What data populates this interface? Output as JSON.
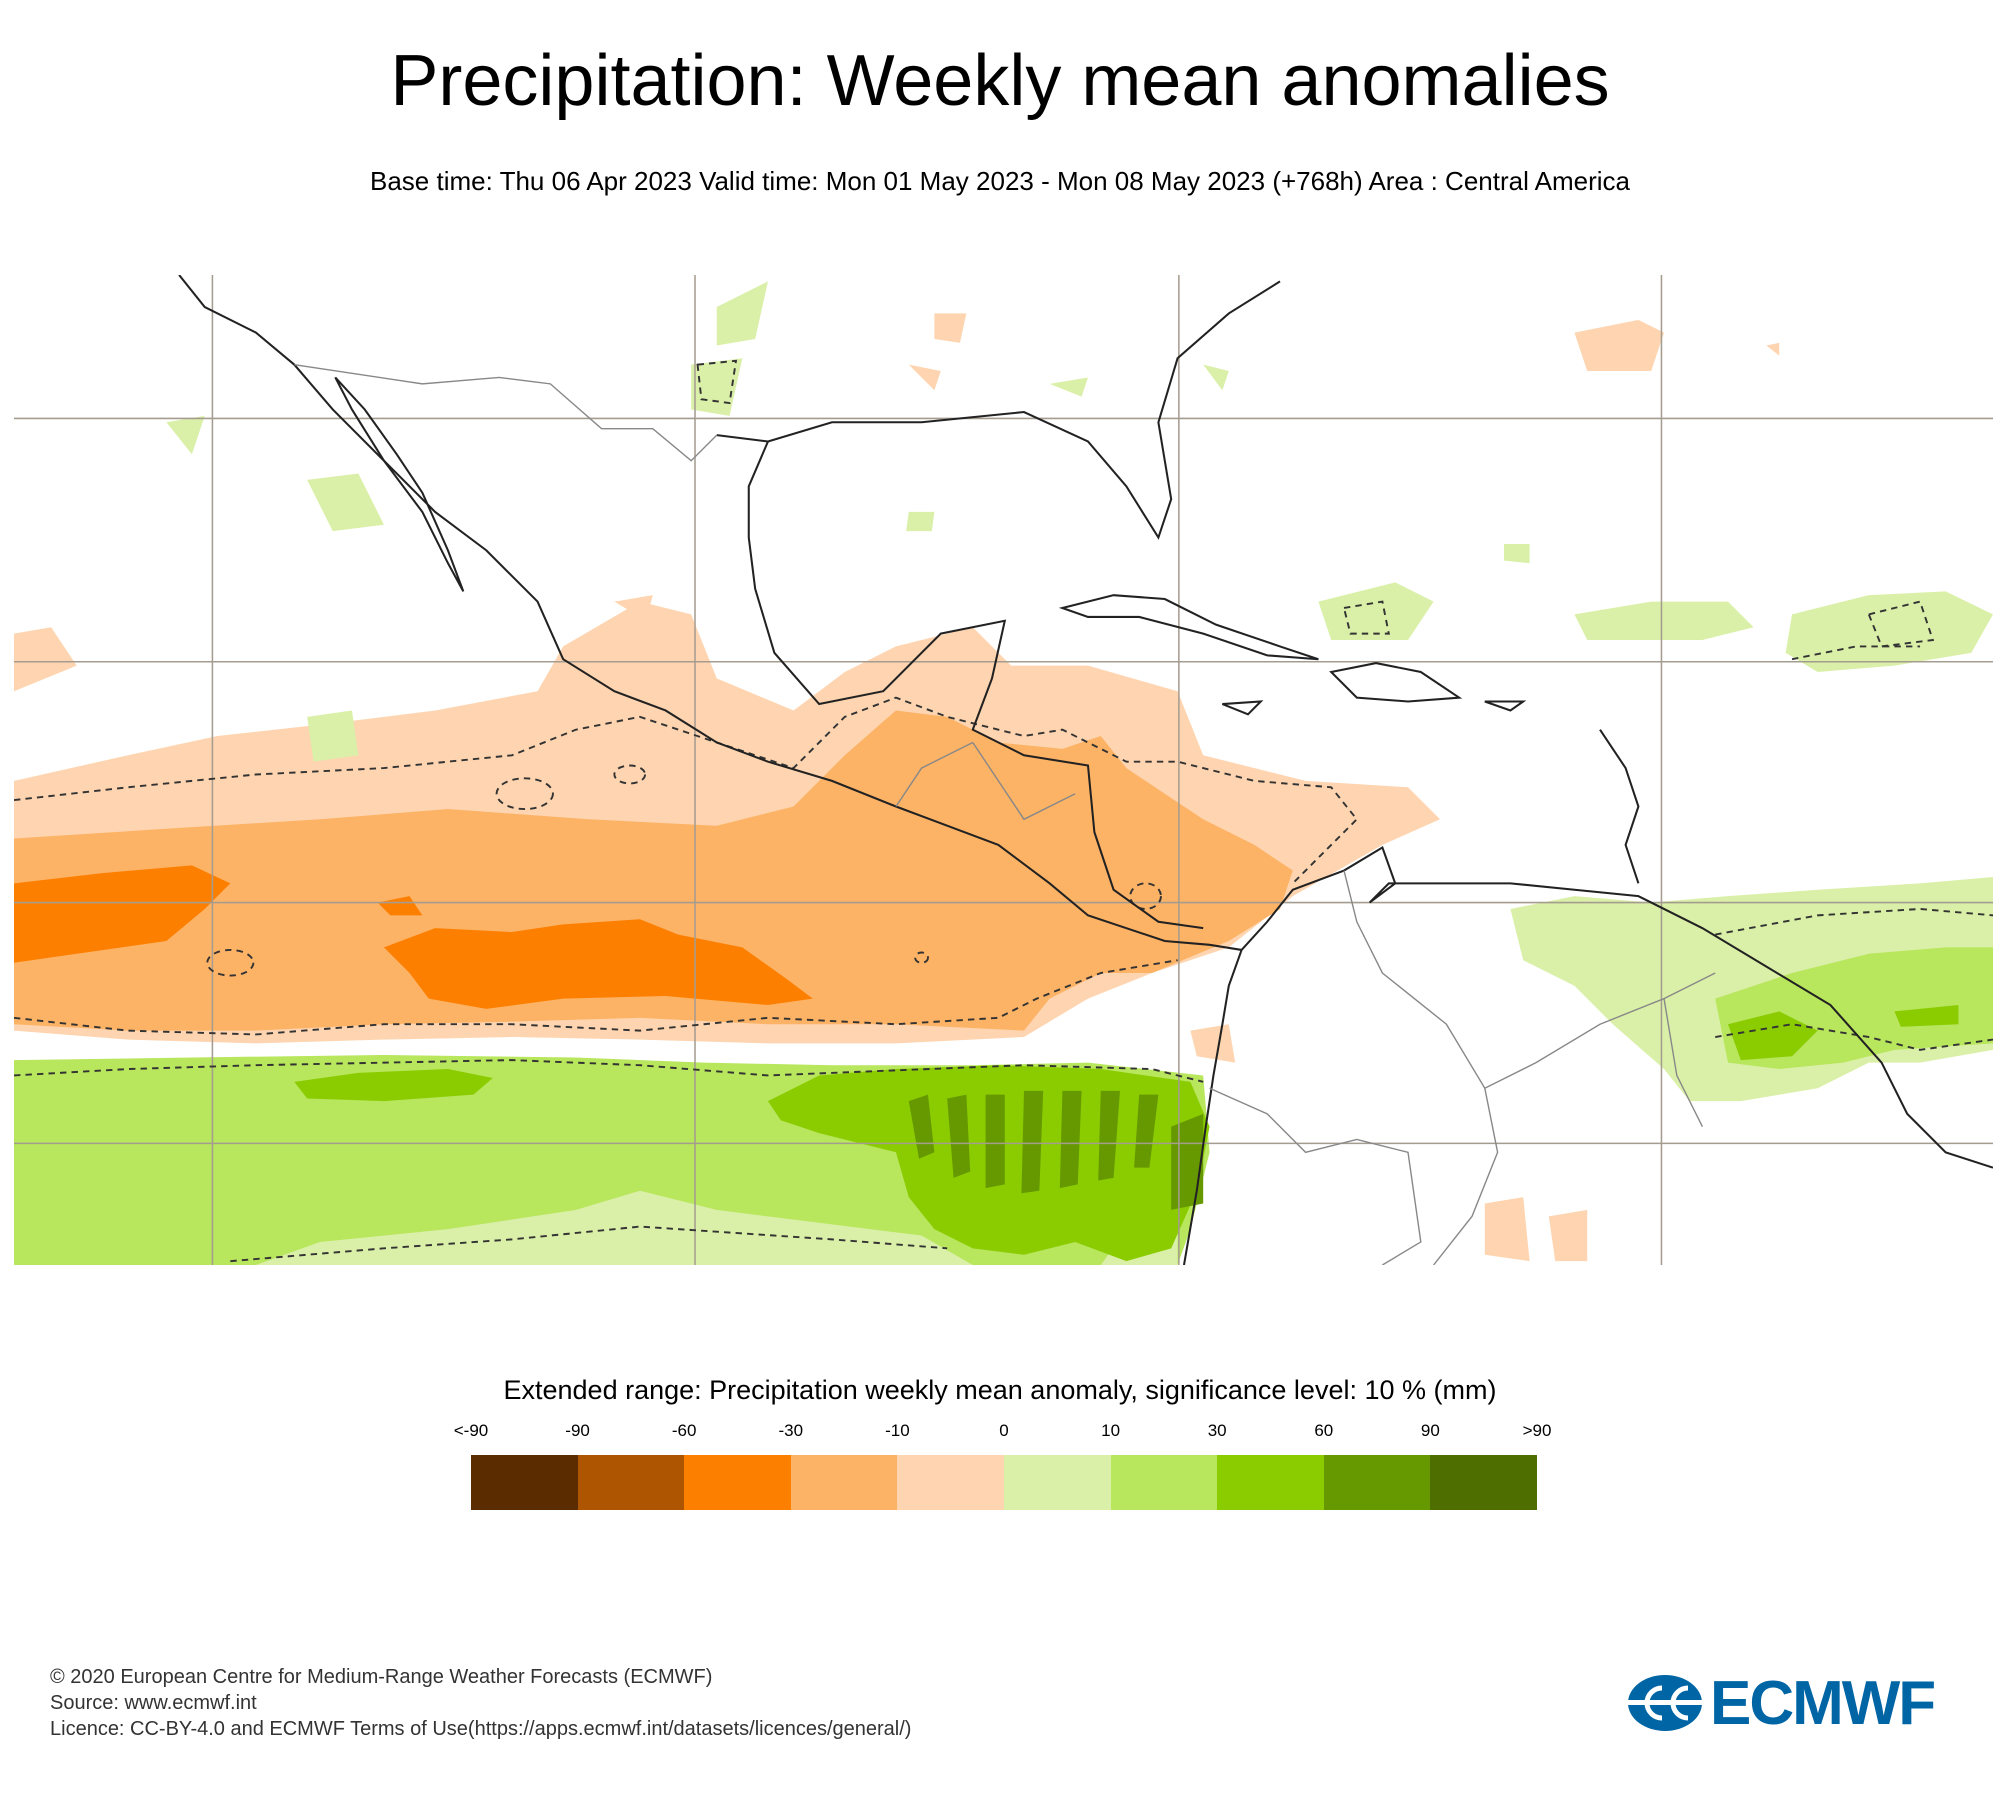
{
  "header": {
    "title": "Precipitation: Weekly mean anomalies",
    "subtitle": "Base time: Thu 06 Apr 2023 Valid time: Mon 01 May 2023 - Mon 08 May 2023 (+768h) Area : Central America"
  },
  "legend": {
    "title": "Extended range: Precipitation weekly mean anomaly, significance level: 10 % (mm)",
    "labels": [
      "<-90",
      "-90",
      "-60",
      "-30",
      "-10",
      "0",
      "10",
      "30",
      "60",
      "90",
      ">90"
    ],
    "colors": [
      "#5a2c00",
      "#ad5500",
      "#fd7f00",
      "#fdb366",
      "#fed5b0",
      "#daf0a8",
      "#b8e65c",
      "#8acc00",
      "#669900",
      "#4e6e00"
    ]
  },
  "footer": {
    "copyright": "© 2020 European Centre for Medium-Range Weather Forecasts (ECMWF)",
    "source": "Source: www.ecmwf.int",
    "licence": "Licence: CC-BY-4.0 and ECMWF Terms of Use(https://apps.ecmwf.int/datasets/licences/general/)"
  },
  "logo": {
    "text": "ECMWF",
    "color": "#0065a4"
  }
}
